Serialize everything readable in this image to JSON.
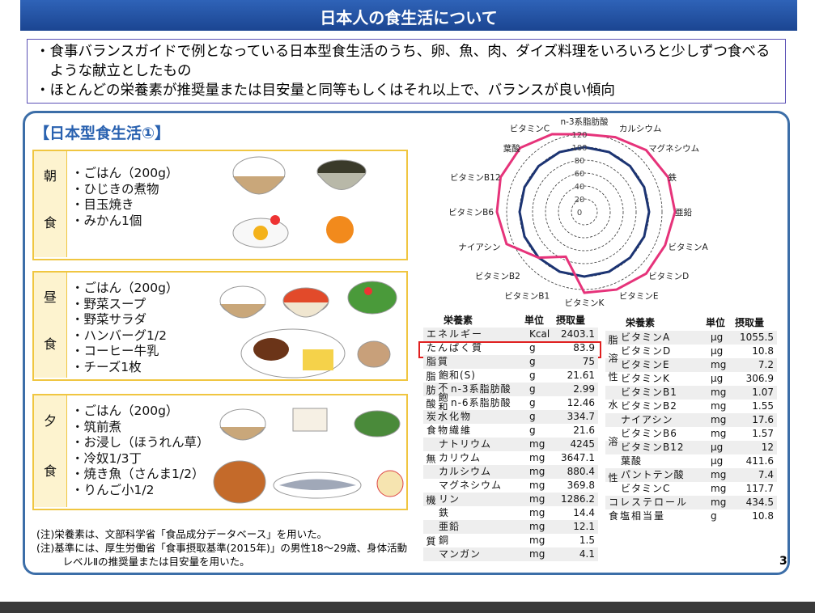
{
  "header": {
    "title": "日本人の食生活について"
  },
  "summary": [
    "・食事バランスガイドで例となっている日本型食生活のうち、卵、魚、肉、ダイズ料理をいろいろと少しずつ食べるような献立としたもの",
    "・ほとんどの栄養素が推奨量または目安量と同等もしくはそれ以上で、バランスが良い傾向"
  ],
  "section_title": "【日本型食生活①】",
  "meals": [
    {
      "label": [
        "朝",
        "食"
      ],
      "items": [
        "・ごはん（200g）",
        "・ひじきの煮物",
        "・目玉焼き",
        "・みかん1個"
      ]
    },
    {
      "label": [
        "昼",
        "食"
      ],
      "items": [
        "・ごはん（200g）",
        "・野菜スープ",
        "・野菜サラダ",
        "・ハンバーグ1/2",
        "・コーヒー牛乳",
        "・チーズ1枚"
      ]
    },
    {
      "label": [
        "夕",
        "食"
      ],
      "items": [
        "・ごはん（200g）",
        "・筑前煮",
        "・お浸し（ほうれん草）",
        "・冷奴1/3丁",
        "・焼き魚（さんま1/2）",
        "・りんご小1/2"
      ]
    }
  ],
  "chart_data": {
    "type": "radar",
    "categories": [
      "n-3系脂肪酸",
      "カルシウム",
      "マグネシウム",
      "鉄",
      "亜鉛",
      "ビタミンA",
      "ビタミンD",
      "ビタミンE",
      "ビタミンK",
      "ビタミンB1",
      "ビタミンB2",
      "ナイアシン",
      "ビタミンB6",
      "ビタミンB12",
      "葉酸",
      "ビタミンC"
    ],
    "series": [
      {
        "color": "#1c3473",
        "values": [
          100,
          100,
          100,
          100,
          100,
          100,
          100,
          100,
          100,
          100,
          100,
          100,
          100,
          100,
          100,
          100
        ]
      },
      {
        "color": "#e6337a",
        "values": [
          120,
          125,
          135,
          140,
          140,
          135,
          135,
          130,
          125,
          75,
          100,
          130,
          135,
          140,
          140,
          130
        ]
      }
    ],
    "ylim": [
      0,
      120
    ],
    "yticks": [
      0,
      20,
      40,
      60,
      80,
      100,
      120
    ]
  },
  "nutrient_tables": [
    {
      "headers": [
        "栄養素",
        "単位",
        "摂取量"
      ],
      "rows": [
        {
          "name": "エネルギー",
          "unit": "Kcal",
          "value": 2403.1
        },
        {
          "name": "たんぱく質",
          "unit": "g",
          "value": 83.9
        },
        {
          "name": "脂質",
          "unit": "g",
          "value": 75
        },
        {
          "group": "脂肪酸",
          "rows": [
            {
              "name": "飽和(S)",
              "unit": "g",
              "value": 21.61
            },
            {
              "group": "不飽和",
              "rows": [
                {
                  "name": "n-3系脂肪酸",
                  "unit": "g",
                  "value": 2.99
                },
                {
                  "name": "n-6系脂肪酸",
                  "unit": "g",
                  "value": 12.46
                }
              ]
            }
          ]
        },
        {
          "name": "炭水化物",
          "unit": "g",
          "value": 334.7
        },
        {
          "name": "食物繊維",
          "unit": "g",
          "value": 21.6
        },
        {
          "group": "無機質",
          "rows": [
            {
              "name": "ナトリウム",
              "unit": "mg",
              "value": 4245
            },
            {
              "name": "カリウム",
              "unit": "mg",
              "value": 3647.1
            },
            {
              "name": "カルシウム",
              "unit": "mg",
              "value": 880.4
            },
            {
              "name": "マグネシウム",
              "unit": "mg",
              "value": 369.8
            },
            {
              "name": "リン",
              "unit": "mg",
              "value": 1286.2
            },
            {
              "name": "鉄",
              "unit": "mg",
              "value": 14.4
            },
            {
              "name": "亜鉛",
              "unit": "mg",
              "value": 12.1
            },
            {
              "name": "銅",
              "unit": "mg",
              "value": 1.5
            },
            {
              "name": "マンガン",
              "unit": "mg",
              "value": 4.1
            }
          ]
        }
      ]
    },
    {
      "headers": [
        "栄養素",
        "単位",
        "摂取量"
      ],
      "rows": [
        {
          "group": "脂溶性",
          "rows": [
            {
              "name": "ビタミンA",
              "unit": "μg",
              "value": 1055.5
            },
            {
              "name": "ビタミンD",
              "unit": "μg",
              "value": 10.8
            },
            {
              "name": "ビタミンE",
              "unit": "mg",
              "value": 7.2
            },
            {
              "name": "ビタミンK",
              "unit": "μg",
              "value": 306.9
            }
          ]
        },
        {
          "group": "水溶性",
          "rows": [
            {
              "name": "ビタミンB1",
              "unit": "mg",
              "value": 1.07
            },
            {
              "name": "ビタミンB2",
              "unit": "mg",
              "value": 1.55
            },
            {
              "name": "ナイアシン",
              "unit": "mg",
              "value": 17.6
            },
            {
              "name": "ビタミンB6",
              "unit": "mg",
              "value": 1.57
            },
            {
              "name": "ビタミンB12",
              "unit": "μg",
              "value": 12
            },
            {
              "name": "葉酸",
              "unit": "μg",
              "value": 411.6
            },
            {
              "name": "パントテン酸",
              "unit": "mg",
              "value": 7.4
            },
            {
              "name": "ビタミンC",
              "unit": "mg",
              "value": 117.7
            }
          ]
        },
        {
          "name": "コレステロール",
          "unit": "mg",
          "value": 434.5
        },
        {
          "name": "食塩相当量",
          "unit": "g",
          "value": 10.8
        }
      ]
    }
  ],
  "notes": [
    "(注)栄養素は、文部科学省「食品成分データベース」を用いた。",
    "(注)基準には、厚生労働省「食事摂取基準(2015年)」の男性18～29歳、身体活動レベルⅡの推奨量または目安量を用いた。"
  ],
  "page_number": 3
}
